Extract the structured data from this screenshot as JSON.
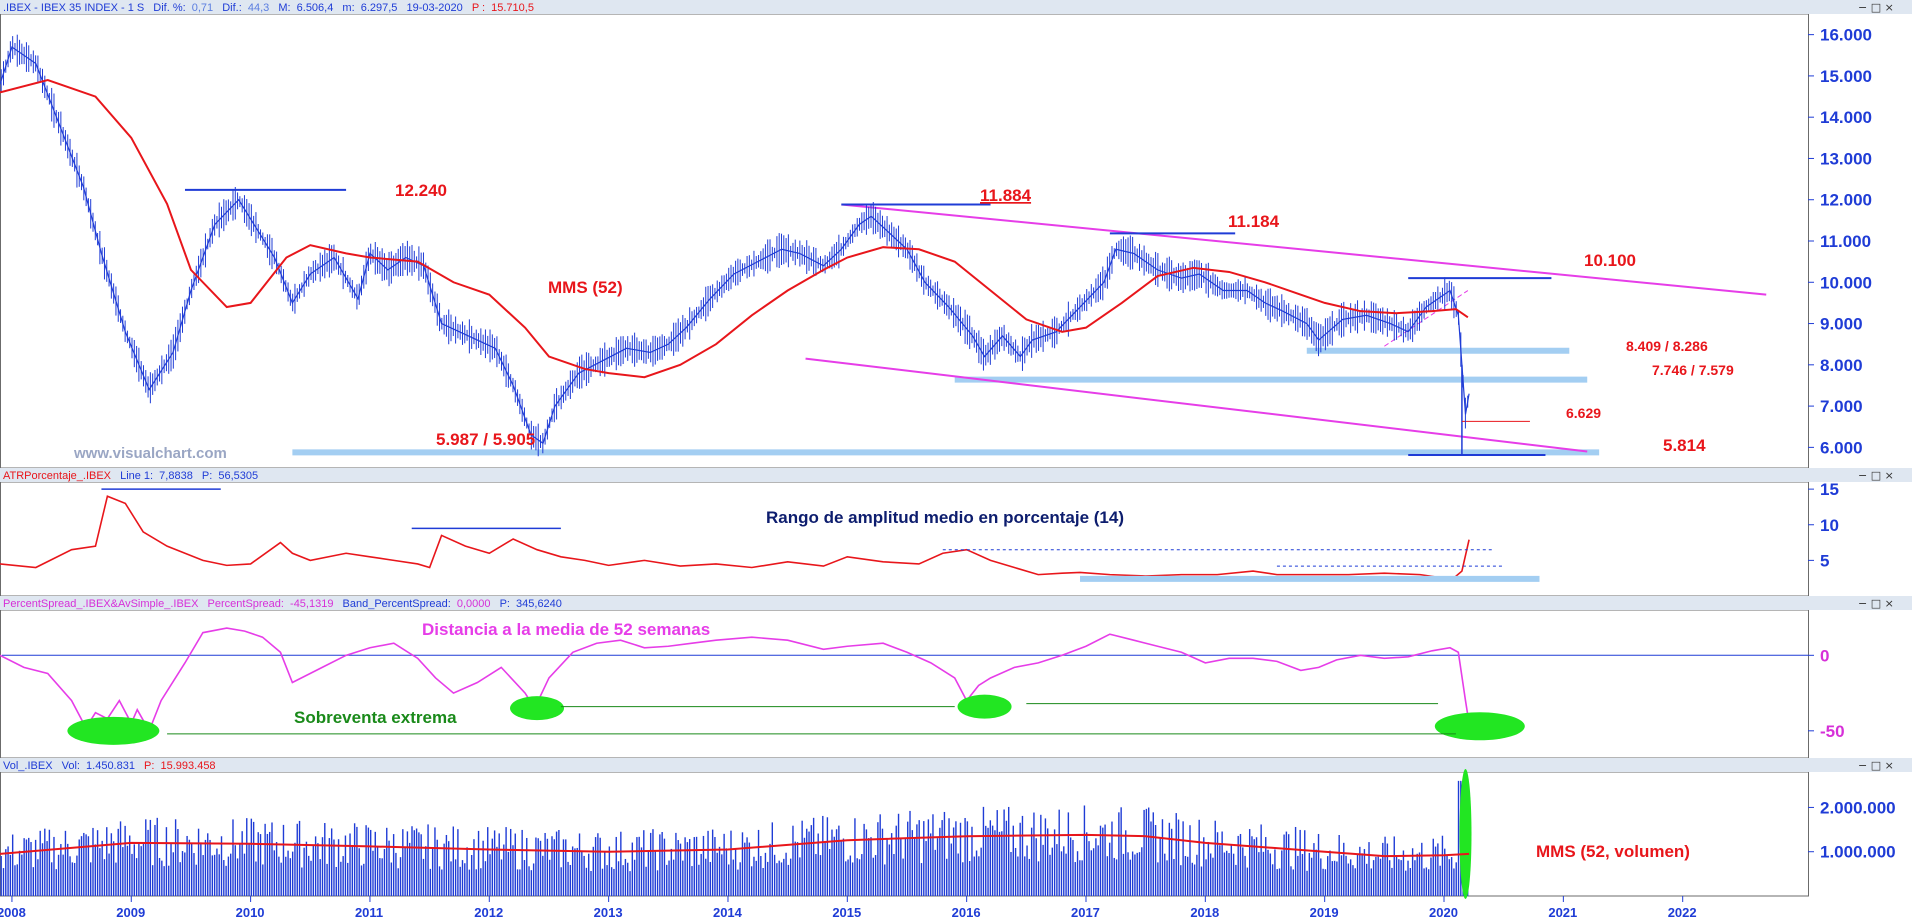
{
  "header": {
    "price": {
      "symbol": ".IBEX - IBEX 35 INDEX -  1 S",
      "dif_pct_label": "Dif. %:",
      "dif_pct": "0,71",
      "dif_label": "Dif.:",
      "dif": "44,3",
      "max_label": "M:",
      "max": "6.506,4",
      "min_label": "m:",
      "min": "6.297,5",
      "date": "19-03-2020",
      "p_label": "P :",
      "p": "15.710,5"
    },
    "atr": {
      "name": "ATRPorcentaje_.IBEX",
      "line_label": "Line 1:",
      "line": "7,8838",
      "p_label": "P:",
      "p": "56,5305"
    },
    "spread": {
      "name": "PercentSpread_.IBEX&AvSimple_.IBEX",
      "ps_label": "PercentSpread:",
      "ps": "-45,1319",
      "band_label": "Band_PercentSpread:",
      "band": "0,0000",
      "p_label": "P:",
      "p": "345,6240"
    },
    "vol": {
      "name": "Vol_.IBEX",
      "vol_label": "Vol:",
      "vol": "1.450.831",
      "p_label": "P:",
      "p": "15.993.458"
    }
  },
  "watermark": "www.visualchart.com",
  "annotations": {
    "p12240": "12.240",
    "p11884": "11.884",
    "p11184": "11.184",
    "p10100": "10.100",
    "mms52": "MMS (52)",
    "s8409": "8.409 / 8.286",
    "s7746": "7.746  / 7.579",
    "s6629": "6.629",
    "s5987": "5.987 / 5.905",
    "s5814": "5.814",
    "atr_title": "Rango de amplitud medio en porcentaje (14)",
    "dist_title": "Distancia a la media de 52 semanas",
    "oversold": "Sobreventa extrema",
    "mms_vol": "MMS (52, volumen)"
  },
  "colors": {
    "price": "#1f3cd6",
    "ma": "#e8161b",
    "trend": "#e63de8",
    "support": "#a3cef2",
    "annotation_red": "#e8161b",
    "annotation_navy": "#0d1d6e",
    "annotation_green": "#1a8a1a",
    "oversold_fill": "#22e622",
    "header_bg": "#dfe7f1"
  },
  "chart_data": [
    {
      "type": "line",
      "title": "",
      "x_range": [
        2007.9,
        2023.05
      ],
      "ylim": [
        5500,
        16500
      ],
      "y_ticks": [
        6000,
        7000,
        8000,
        9000,
        10000,
        11000,
        12000,
        13000,
        14000,
        15000,
        16000
      ],
      "y_tick_labels": [
        "6.000",
        "7.000",
        "8.000",
        "9.000",
        "10.000",
        "11.000",
        "12.000",
        "13.000",
        "14.000",
        "15.000",
        "16.000"
      ],
      "x_ticks": [
        2008,
        2009,
        2010,
        2011,
        2012,
        2013,
        2014,
        2015,
        2016,
        2017,
        2018,
        2019,
        2020,
        2021,
        2022
      ],
      "series": [
        {
          "values_x": [
            2007.9,
            2008.0,
            2008.2,
            2008.4,
            2008.6,
            2008.75,
            2008.95,
            2009.15,
            2009.35,
            2009.5,
            2009.7,
            2009.9,
            2010.05,
            2010.2,
            2010.35,
            2010.5,
            2010.7,
            2010.9,
            2011.0,
            2011.15,
            2011.3,
            2011.45,
            2011.6,
            2011.75,
            2011.9,
            2012.05,
            2012.2,
            2012.35,
            2012.45,
            2012.55,
            2012.75,
            2012.95,
            2013.15,
            2013.35,
            2013.5,
            2013.65,
            2013.85,
            2014.05,
            2014.25,
            2014.45,
            2014.6,
            2014.8,
            2014.95,
            2015.1,
            2015.2,
            2015.35,
            2015.5,
            2015.65,
            2015.85,
            2016.05,
            2016.15,
            2016.3,
            2016.45,
            2016.55,
            2016.75,
            2016.95,
            2017.15,
            2017.25,
            2017.4,
            2017.6,
            2017.8,
            2017.95,
            2018.15,
            2018.35,
            2018.5,
            2018.65,
            2018.85,
            2018.95,
            2019.15,
            2019.35,
            2019.55,
            2019.7,
            2019.85,
            2019.95,
            2020.05,
            2020.12,
            2020.18,
            2020.21
          ],
          "values": [
            14800,
            15700,
            15300,
            13800,
            12300,
            10700,
            8800,
            7400,
            8300,
            9800,
            11400,
            12000,
            11300,
            10600,
            9500,
            10200,
            10600,
            9600,
            10700,
            10300,
            10600,
            10400,
            9000,
            8800,
            8600,
            8400,
            7500,
            6300,
            6100,
            7000,
            7800,
            8100,
            8400,
            8300,
            8500,
            8900,
            9600,
            10200,
            10500,
            10800,
            10700,
            10400,
            10800,
            11400,
            11600,
            11200,
            10800,
            10000,
            9400,
            8700,
            8200,
            8700,
            8200,
            8600,
            8800,
            9400,
            10000,
            10800,
            10700,
            10300,
            10100,
            10200,
            9800,
            9800,
            9500,
            9300,
            9000,
            8600,
            9100,
            9200,
            9000,
            8800,
            9400,
            9600,
            9800,
            9200,
            6800,
            7300
          ]
        },
        {
          "values_x": [
            2007.9,
            2008.3,
            2008.7,
            2009.0,
            2009.3,
            2009.5,
            2009.8,
            2010.0,
            2010.3,
            2010.5,
            2010.8,
            2011.0,
            2011.4,
            2011.7,
            2012.0,
            2012.3,
            2012.5,
            2012.8,
            2013.0,
            2013.3,
            2013.6,
            2013.9,
            2014.2,
            2014.5,
            2014.8,
            2015.0,
            2015.3,
            2015.6,
            2015.9,
            2016.2,
            2016.5,
            2016.8,
            2017.0,
            2017.3,
            2017.6,
            2017.9,
            2018.2,
            2018.5,
            2018.8,
            2019.0,
            2019.3,
            2019.6,
            2019.9,
            2020.1,
            2020.2
          ],
          "values": [
            14600,
            14900,
            14500,
            13500,
            11900,
            10300,
            9400,
            9500,
            10600,
            10900,
            10700,
            10600,
            10500,
            10000,
            9700,
            8900,
            8200,
            7900,
            7800,
            7700,
            8000,
            8500,
            9200,
            9800,
            10300,
            10600,
            10850,
            10800,
            10500,
            9800,
            9100,
            8800,
            8900,
            9500,
            10150,
            10350,
            10250,
            10000,
            9700,
            9500,
            9300,
            9250,
            9300,
            9350,
            9150
          ]
        }
      ]
    },
    {
      "type": "line",
      "title": "",
      "x_range": [
        2007.9,
        2023.05
      ],
      "ylim": [
        0,
        16
      ],
      "y_ticks": [
        5,
        10,
        15
      ],
      "y_tick_labels": [
        "5",
        "10",
        "15"
      ],
      "series": [
        {
          "values_x": [
            2007.9,
            2008.2,
            2008.5,
            2008.7,
            2008.8,
            2008.95,
            2009.1,
            2009.3,
            2009.6,
            2009.8,
            2010.0,
            2010.25,
            2010.35,
            2010.5,
            2010.8,
            2011.0,
            2011.2,
            2011.4,
            2011.5,
            2011.6,
            2011.8,
            2012.0,
            2012.2,
            2012.4,
            2012.6,
            2012.8,
            2013.0,
            2013.3,
            2013.6,
            2013.9,
            2014.2,
            2014.5,
            2014.8,
            2015.0,
            2015.3,
            2015.6,
            2015.8,
            2016.0,
            2016.2,
            2016.4,
            2016.6,
            2016.8,
            2016.95,
            2017.2,
            2017.5,
            2017.8,
            2018.1,
            2018.4,
            2018.6,
            2018.9,
            2019.2,
            2019.5,
            2019.8,
            2020.0,
            2020.08,
            2020.15,
            2020.21
          ],
          "values": [
            4.5,
            4.0,
            6.5,
            7.0,
            14.0,
            13.0,
            9.0,
            7.0,
            5.0,
            4.3,
            4.5,
            7.5,
            6.0,
            5.0,
            6.0,
            5.5,
            5.0,
            4.5,
            4.0,
            8.5,
            7.0,
            6.0,
            8.0,
            6.5,
            5.5,
            5.0,
            4.3,
            5.0,
            4.2,
            4.5,
            4.0,
            4.8,
            4.2,
            5.5,
            4.8,
            4.5,
            6.0,
            6.5,
            5.0,
            4.0,
            3.0,
            3.2,
            3.3,
            3.0,
            2.8,
            3.0,
            3.0,
            3.5,
            3.0,
            3.0,
            3.0,
            3.2,
            3.0,
            2.5,
            2.5,
            3.5,
            7.9
          ]
        }
      ]
    },
    {
      "type": "line",
      "title": "",
      "x_range": [
        2007.9,
        2023.05
      ],
      "ylim": [
        -68,
        30
      ],
      "y_ticks": [
        0,
        -50
      ],
      "y_tick_labels": [
        "0",
        "-50"
      ],
      "series": [
        {
          "values_x": [
            2007.9,
            2008.1,
            2008.3,
            2008.5,
            2008.62,
            2008.7,
            2008.8,
            2008.9,
            2009.0,
            2009.05,
            2009.15,
            2009.25,
            2009.45,
            2009.6,
            2009.8,
            2009.95,
            2010.1,
            2010.25,
            2010.35,
            2010.6,
            2010.8,
            2011.0,
            2011.2,
            2011.4,
            2011.55,
            2011.7,
            2011.9,
            2012.1,
            2012.3,
            2012.38,
            2012.5,
            2012.7,
            2012.9,
            2013.1,
            2013.3,
            2013.5,
            2013.7,
            2013.9,
            2014.2,
            2014.5,
            2014.8,
            2015.0,
            2015.3,
            2015.5,
            2015.7,
            2015.9,
            2016.0,
            2016.1,
            2016.2,
            2016.4,
            2016.6,
            2016.8,
            2017.0,
            2017.2,
            2017.4,
            2017.6,
            2017.8,
            2018.0,
            2018.2,
            2018.4,
            2018.6,
            2018.8,
            2018.95,
            2019.1,
            2019.3,
            2019.5,
            2019.7,
            2019.9,
            2020.05,
            2020.12,
            2020.18,
            2020.21
          ],
          "values": [
            0,
            -8,
            -12,
            -30,
            -48,
            -38,
            -42,
            -30,
            -45,
            -36,
            -50,
            -30,
            -5,
            15,
            18,
            16,
            12,
            2,
            -18,
            -8,
            0,
            5,
            8,
            -2,
            -15,
            -25,
            -18,
            -8,
            -25,
            -35,
            -15,
            2,
            8,
            10,
            5,
            6,
            8,
            10,
            12,
            10,
            4,
            6,
            8,
            2,
            -5,
            -15,
            -30,
            -20,
            -15,
            -8,
            -5,
            0,
            6,
            14,
            10,
            6,
            2,
            -5,
            -2,
            -2,
            -4,
            -10,
            -8,
            -3,
            0,
            -2,
            -1,
            3,
            5,
            2,
            -30,
            -45
          ]
        }
      ]
    },
    {
      "type": "bar",
      "title": "",
      "x_range": [
        2007.9,
        2023.05
      ],
      "ylim": [
        0,
        2800000
      ],
      "y_ticks": [
        1000000,
        2000000
      ],
      "y_tick_labels": [
        "1.000.000",
        "2.000.000"
      ],
      "series": [
        {
          "values_x": [
            2007.9,
            2009.0,
            2010.0,
            2011.0,
            2012.0,
            2013.0,
            2014.0,
            2015.0,
            2016.0,
            2017.0,
            2017.5,
            2018.0,
            2019.0,
            2019.5,
            2020.0,
            2020.21
          ],
          "values": [
            950000,
            1200000,
            1180000,
            1120000,
            1050000,
            1000000,
            1050000,
            1260000,
            1350000,
            1380000,
            1350000,
            1200000,
            1000000,
            900000,
            920000,
            950000
          ]
        }
      ]
    }
  ]
}
